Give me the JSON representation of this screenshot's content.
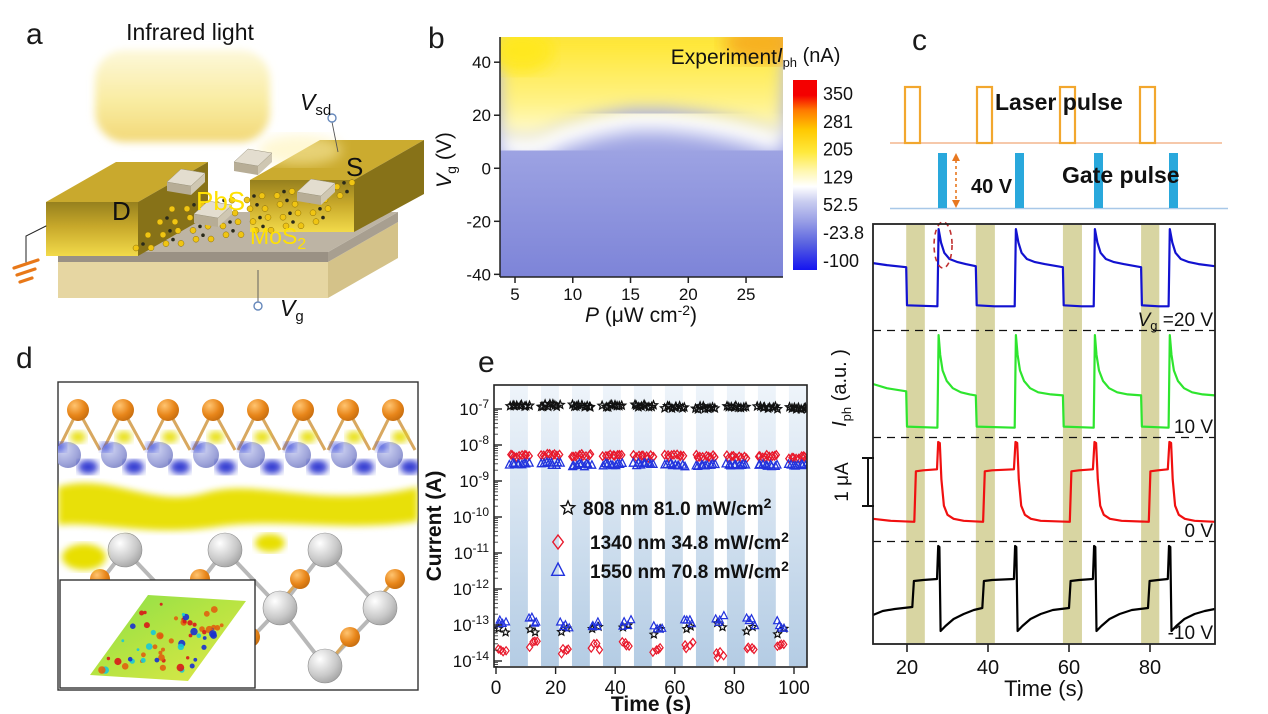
{
  "panels": {
    "a": {
      "label": "a",
      "title": "Infrared light",
      "drain_label": "D",
      "source_label": "S",
      "pbs_label": "PbS",
      "mos2_label": {
        "base": "MoS",
        "sub": "2"
      },
      "vsd_label": {
        "base": "V",
        "sub": "sd"
      },
      "vg_label": {
        "base": "V",
        "sub": "g"
      }
    },
    "b": {
      "label": "b",
      "annotation": "Experiment",
      "ylabel": {
        "base": "V",
        "sub": "g",
        "rest": " (V)"
      },
      "xlabel": {
        "base": "P",
        "open": " (μW cm",
        "sup": "-2",
        "close": ")"
      },
      "colorbar": {
        "title": {
          "base": "I",
          "sub": "ph",
          "rest": " (nA)"
        },
        "tick_labels": [
          "350",
          "281",
          "205",
          "129",
          "52.5",
          "-23.8",
          "-100"
        ]
      }
    },
    "c": {
      "label": "c",
      "laser_pulse_label": "Laser pulse",
      "gate_pulse_label": "Gate pulse",
      "gate_amplitude_label": "40 V",
      "ylabel": {
        "base": "I",
        "sub": "ph",
        "rest": " (a.u. )"
      },
      "scalebar_label": "1 μA",
      "xlabel": "Time (s)",
      "trace_label_0": {
        "base": "V",
        "sub": "g",
        "rest": " =20 V"
      },
      "trace_label_1": "10 V",
      "trace_label_2": "0 V",
      "trace_label_3": "-10 V"
    },
    "d": {
      "label": "d"
    },
    "e": {
      "label": "e",
      "ylabel": "Current (A)",
      "xlabel": "Time (s)",
      "legend": [
        {
          "text": "808 nm 81.0 mW/cm",
          "sup": "2"
        },
        {
          "text": "1340 nm 34.8 mW/cm",
          "sup": "2"
        },
        {
          "text": "1550 nm  70.8 mW/cm",
          "sup": "2"
        }
      ]
    }
  },
  "colors": {
    "laser_pulse_outline": "#f2a72e",
    "laser_baseline": "#f0a878",
    "gate_pulse_fill": "#29a8dc",
    "gate_baseline": "#a8c8e8",
    "laser_band": "#d8d5a2",
    "light_stripe": "#c6d9ec",
    "trace_20V": "#1212d0",
    "trace_10V": "#2ee52e",
    "trace_0V": "#f01010",
    "trace_m10V": "#000000",
    "pbs_text": "#ffe103"
  },
  "chart_data": [
    {
      "panel": "b",
      "type": "heatmap",
      "title": "Experiment",
      "xlabel": "P (uW cm^-2)",
      "ylabel": "Vg (V)",
      "x_ticks": [
        5,
        10,
        15,
        20,
        25
      ],
      "y_ticks": [
        40,
        20,
        0,
        -20,
        -40
      ],
      "x_range": [
        3.7,
        28.2
      ],
      "y_range": [
        -41,
        49.5
      ],
      "colorbar_title": "Iph (nA)",
      "colorbar_ticks": [
        350,
        281,
        205,
        129,
        52.5,
        -23.8,
        -100
      ],
      "color_scale_bottom_to_top": [
        "#1414f0",
        "#5a63e0",
        "#9aa0e6",
        "#c9cdf0",
        "#ffffff",
        "#fff7b0",
        "#ffe93c",
        "#ffc800",
        "#ff7a00",
        "#f40000"
      ],
      "white_boundary_Iph_nA": 129,
      "boundary_points_P_Vg": [
        [
          3.7,
          10
        ],
        [
          5.5,
          8
        ],
        [
          7,
          8.5
        ],
        [
          9,
          13
        ],
        [
          12,
          17
        ],
        [
          15,
          19.5
        ],
        [
          18,
          19.5
        ],
        [
          21,
          18
        ],
        [
          24,
          15.5
        ],
        [
          26.5,
          12.5
        ],
        [
          28.2,
          10
        ]
      ],
      "region_above_boundary_nA": 205,
      "region_below_boundary_nA": 30,
      "top_right_corner_nA": 300
    },
    {
      "panel": "c",
      "type": "line",
      "xlabel": "Time (s)",
      "ylabel": "Iph (a.u.)",
      "x_ticks": [
        20,
        40,
        60,
        80
      ],
      "x_range": [
        11.6,
        96
      ],
      "scalebar": "1 uA",
      "laser_on_intervals": [
        [
          19.8,
          24.4
        ],
        [
          37.0,
          41.7
        ],
        [
          58.5,
          63.2
        ],
        [
          77.8,
          82.3
        ]
      ],
      "gate_pulse_times": [
        27.7,
        46.8,
        66.3,
        84.8
      ],
      "gate_pulse_amplitude_V": 40,
      "annotation_ellipse": {
        "trace": "20 V",
        "t": 28.9
      },
      "traces": [
        {
          "gate_voltage": "20 V",
          "color": "#1212d0",
          "points": [
            [
              11.6,
              0.64
            ],
            [
              15,
              0.62
            ],
            [
              19.8,
              0.6
            ],
            [
              20,
              0.23
            ],
            [
              27.5,
              0.22
            ],
            [
              27.8,
              0.97
            ],
            [
              28.4,
              0.84
            ],
            [
              29.2,
              0.74
            ],
            [
              30.5,
              0.68
            ],
            [
              32.5,
              0.65
            ],
            [
              34.5,
              0.63
            ],
            [
              37,
              0.61
            ],
            [
              37.2,
              0.23
            ],
            [
              41.6,
              0.22
            ],
            [
              46.6,
              0.22
            ],
            [
              46.9,
              0.97
            ],
            [
              47.5,
              0.84
            ],
            [
              48.3,
              0.74
            ],
            [
              49.6,
              0.68
            ],
            [
              51.6,
              0.65
            ],
            [
              54,
              0.63
            ],
            [
              58.5,
              0.6
            ],
            [
              58.7,
              0.23
            ],
            [
              63.1,
              0.22
            ],
            [
              66.1,
              0.22
            ],
            [
              66.4,
              0.97
            ],
            [
              67,
              0.84
            ],
            [
              67.8,
              0.74
            ],
            [
              69.1,
              0.68
            ],
            [
              71.1,
              0.65
            ],
            [
              73.5,
              0.63
            ],
            [
              77.8,
              0.6
            ],
            [
              78,
              0.23
            ],
            [
              82.2,
              0.22
            ],
            [
              84.6,
              0.22
            ],
            [
              84.9,
              0.97
            ],
            [
              85.5,
              0.84
            ],
            [
              86.3,
              0.74
            ],
            [
              87.6,
              0.68
            ],
            [
              89.6,
              0.65
            ],
            [
              92,
              0.63
            ],
            [
              96,
              0.61
            ]
          ]
        },
        {
          "gate_voltage": "10 V",
          "color": "#2ee52e",
          "points": [
            [
              11.6,
              0.5
            ],
            [
              15,
              0.46
            ],
            [
              19.8,
              0.43
            ],
            [
              20,
              0.09
            ],
            [
              27.5,
              0.08
            ],
            [
              27.8,
              0.97
            ],
            [
              28.2,
              0.78
            ],
            [
              28.8,
              0.63
            ],
            [
              29.8,
              0.53
            ],
            [
              31.3,
              0.46
            ],
            [
              33.3,
              0.42
            ],
            [
              35.5,
              0.4
            ],
            [
              37,
              0.39
            ],
            [
              37.2,
              0.09
            ],
            [
              46.6,
              0.08
            ],
            [
              46.9,
              0.97
            ],
            [
              47.3,
              0.78
            ],
            [
              47.9,
              0.63
            ],
            [
              48.9,
              0.53
            ],
            [
              50.4,
              0.46
            ],
            [
              52.4,
              0.42
            ],
            [
              55.5,
              0.4
            ],
            [
              58.5,
              0.39
            ],
            [
              58.7,
              0.09
            ],
            [
              66.1,
              0.08
            ],
            [
              66.4,
              0.97
            ],
            [
              66.8,
              0.78
            ],
            [
              67.4,
              0.63
            ],
            [
              68.4,
              0.53
            ],
            [
              69.9,
              0.46
            ],
            [
              71.9,
              0.42
            ],
            [
              74.5,
              0.4
            ],
            [
              77.8,
              0.39
            ],
            [
              78,
              0.09
            ],
            [
              84.6,
              0.08
            ],
            [
              84.9,
              0.97
            ],
            [
              85.3,
              0.78
            ],
            [
              85.9,
              0.63
            ],
            [
              86.9,
              0.53
            ],
            [
              88.4,
              0.46
            ],
            [
              90.4,
              0.42
            ],
            [
              93,
              0.4
            ],
            [
              96,
              0.39
            ]
          ]
        },
        {
          "gate_voltage": "0 V",
          "color": "#f01010",
          "points": [
            [
              11.6,
              0.21
            ],
            [
              16,
              0.19
            ],
            [
              21.8,
              0.18
            ],
            [
              22.2,
              0.68
            ],
            [
              24,
              0.69
            ],
            [
              27.4,
              0.7
            ],
            [
              27.7,
              0.97
            ],
            [
              28.1,
              0.96
            ],
            [
              28.5,
              0.6
            ],
            [
              29.1,
              0.34
            ],
            [
              30,
              0.25
            ],
            [
              31.5,
              0.21
            ],
            [
              34,
              0.19
            ],
            [
              38.8,
              0.18
            ],
            [
              39.2,
              0.68
            ],
            [
              41,
              0.69
            ],
            [
              46.4,
              0.7
            ],
            [
              46.8,
              0.97
            ],
            [
              47.2,
              0.96
            ],
            [
              47.6,
              0.6
            ],
            [
              48.2,
              0.34
            ],
            [
              49.1,
              0.25
            ],
            [
              50.6,
              0.21
            ],
            [
              53,
              0.19
            ],
            [
              60.2,
              0.18
            ],
            [
              60.6,
              0.68
            ],
            [
              62.5,
              0.69
            ],
            [
              65.9,
              0.7
            ],
            [
              66.3,
              0.97
            ],
            [
              66.7,
              0.96
            ],
            [
              67.1,
              0.6
            ],
            [
              67.7,
              0.34
            ],
            [
              68.6,
              0.25
            ],
            [
              70.1,
              0.21
            ],
            [
              73,
              0.19
            ],
            [
              79.7,
              0.18
            ],
            [
              80.1,
              0.68
            ],
            [
              82,
              0.69
            ],
            [
              84.4,
              0.7
            ],
            [
              84.8,
              0.97
            ],
            [
              85.2,
              0.96
            ],
            [
              85.6,
              0.6
            ],
            [
              86.2,
              0.34
            ],
            [
              87.1,
              0.25
            ],
            [
              88.6,
              0.21
            ],
            [
              91,
              0.19
            ],
            [
              96,
              0.18
            ]
          ]
        },
        {
          "gate_voltage": "-10 V",
          "color": "#000000",
          "points": [
            [
              11.6,
              0.28
            ],
            [
              14,
              0.32
            ],
            [
              17,
              0.34
            ],
            [
              21.3,
              0.36
            ],
            [
              21.7,
              0.62
            ],
            [
              24,
              0.63
            ],
            [
              27.4,
              0.64
            ],
            [
              27.7,
              0.97
            ],
            [
              28,
              0.96
            ],
            [
              28.3,
              0.12
            ],
            [
              29.5,
              0.17
            ],
            [
              31.5,
              0.24
            ],
            [
              34,
              0.29
            ],
            [
              36.5,
              0.33
            ],
            [
              38.6,
              0.35
            ],
            [
              39,
              0.62
            ],
            [
              41,
              0.63
            ],
            [
              46.4,
              0.64
            ],
            [
              46.7,
              0.97
            ],
            [
              47,
              0.96
            ],
            [
              47.3,
              0.12
            ],
            [
              48.5,
              0.17
            ],
            [
              50.5,
              0.24
            ],
            [
              53,
              0.29
            ],
            [
              56,
              0.33
            ],
            [
              60,
              0.35
            ],
            [
              60.4,
              0.62
            ],
            [
              62.5,
              0.63
            ],
            [
              65.9,
              0.64
            ],
            [
              66.2,
              0.97
            ],
            [
              66.5,
              0.96
            ],
            [
              66.8,
              0.12
            ],
            [
              68,
              0.17
            ],
            [
              70,
              0.24
            ],
            [
              72.5,
              0.29
            ],
            [
              75.5,
              0.33
            ],
            [
              79.5,
              0.35
            ],
            [
              79.9,
              0.62
            ],
            [
              82,
              0.63
            ],
            [
              84.4,
              0.64
            ],
            [
              84.7,
              0.97
            ],
            [
              85,
              0.96
            ],
            [
              85.3,
              0.12
            ],
            [
              86.5,
              0.17
            ],
            [
              88.5,
              0.24
            ],
            [
              91,
              0.29
            ],
            [
              93.5,
              0.32
            ],
            [
              96,
              0.34
            ]
          ]
        }
      ]
    },
    {
      "panel": "e",
      "type": "scatter",
      "y_scale": "log",
      "xlabel": "Time (s)",
      "ylabel": "Current (A)",
      "x_ticks": [
        0,
        20,
        40,
        60,
        80,
        100
      ],
      "y_tick_exponents": [
        -7,
        -8,
        -9,
        -10,
        -11,
        -12,
        -13,
        -14
      ],
      "cycles": 10,
      "light_on_first_interval_s": [
        4.7,
        10.7
      ],
      "light_on_period_s": 10.4,
      "series": [
        {
          "name": "808 nm 81.0 mW/cm2",
          "marker": "star",
          "color": "#111111",
          "on_current_A": [
            1.22e-07,
            1.28e-07,
            1.24e-07,
            1.19e-07,
            1.23e-07,
            1.12e-07,
            1.08e-07,
            1.18e-07,
            1.1e-07,
            1.02e-07
          ],
          "off_current_A": [
            8e-14,
            7e-14,
            6.5e-14,
            8e-14,
            9e-14,
            7e-14,
            8.5e-14,
            9e-14,
            8e-14,
            7e-14
          ]
        },
        {
          "name": "1340 nm 34.8 mW/cm2",
          "marker": "diamond",
          "color": "#e8192c",
          "on_current_A": [
            5e-09,
            5.2e-09,
            5.1e-09,
            4.9e-09,
            4.8e-09,
            5e-09,
            4.9e-09,
            4.7e-09,
            4.8e-09,
            4.6e-09
          ],
          "off_current_A": [
            2.2e-14,
            3e-14,
            1.8e-14,
            2.5e-14,
            3.2e-14,
            2e-14,
            2.8e-14,
            1.6e-14,
            2.4e-14,
            2.6e-14
          ]
        },
        {
          "name": "1550 nm 70.8 mW/cm2",
          "marker": "triangle",
          "color": "#2233dd",
          "on_current_A": [
            2.9e-09,
            3e-09,
            2.8e-09,
            2.9e-09,
            3e-09,
            2.8e-09,
            2.7e-09,
            2.9e-09,
            2.8e-09,
            2.7e-09
          ],
          "off_current_A": [
            1.1e-13,
            1.3e-13,
            1e-13,
            1.2e-13,
            1.1e-13,
            9e-14,
            1.3e-13,
            1.5e-13,
            1.2e-13,
            1e-13
          ]
        }
      ]
    }
  ]
}
